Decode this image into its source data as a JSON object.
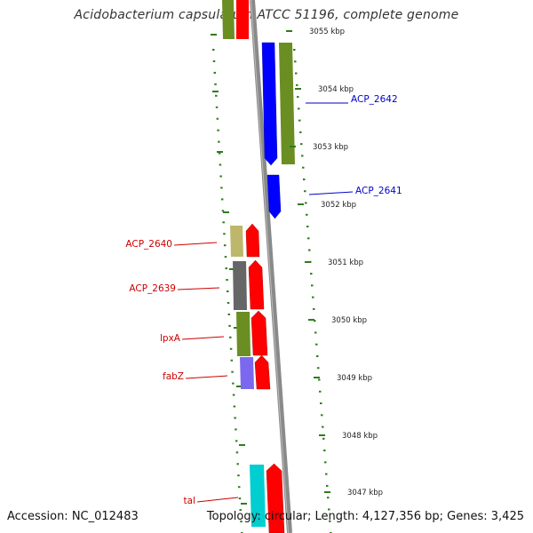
{
  "title": "Acidobacterium capsulatum ATCC 51196, complete genome",
  "footer": {
    "accession": "Accession: NC_012483",
    "summary": "Topology: circular; Length: 4,127,356 bp; Genes: 3,425"
  },
  "colors": {
    "backbone": "#8a8a8a",
    "tick": "#2e7d1a",
    "forward_label": "#cc0000",
    "reverse_label": "#0000cc"
  },
  "scale_ticks": [
    "3055 kbp",
    "3054 kbp",
    "3053 kbp",
    "3052 kbp",
    "3051 kbp",
    "3050 kbp",
    "3049 kbp",
    "3048 kbp",
    "3047 kbp"
  ],
  "genes": [
    {
      "name": "ACP_2642",
      "strand": "reverse",
      "color": "#0000ff"
    },
    {
      "name": "ACP_2641",
      "strand": "reverse",
      "color": "#0000ff"
    },
    {
      "name": "ACP_2640",
      "strand": "forward",
      "color": "#ff0000"
    },
    {
      "name": "ACP_2639",
      "strand": "forward",
      "color": "#ff0000"
    },
    {
      "name": "lpxA",
      "strand": "forward",
      "color": "#ff0000"
    },
    {
      "name": "fabZ",
      "strand": "forward",
      "color": "#ff0000"
    },
    {
      "name": "tal",
      "strand": "forward",
      "color": "#ff0000"
    }
  ],
  "cog_colors": [
    "#6b8e23",
    "#bdb76b",
    "#666666",
    "#7b68ee",
    "#00ced1"
  ]
}
